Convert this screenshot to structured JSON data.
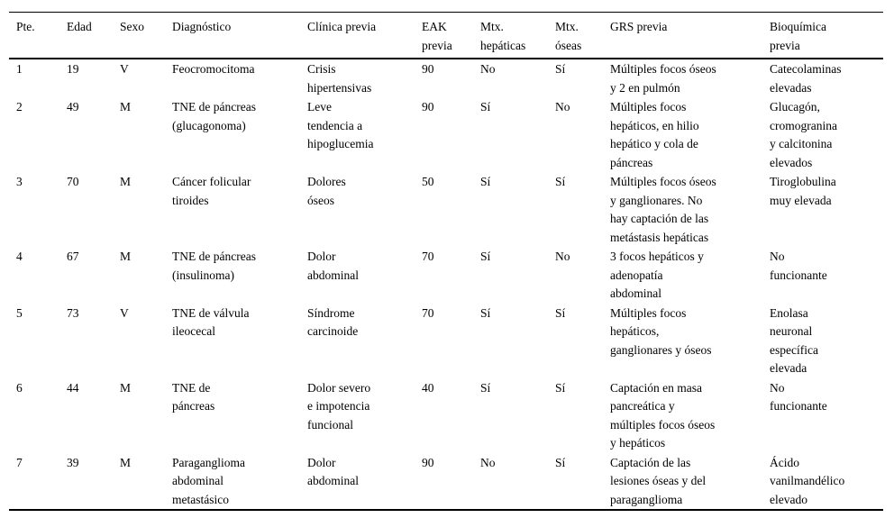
{
  "colors": {
    "text": "#000000",
    "background": "#ffffff",
    "rule": "#000000"
  },
  "table": {
    "columns": [
      {
        "key": "pte",
        "label": "Pte."
      },
      {
        "key": "edad",
        "label": "Edad"
      },
      {
        "key": "sexo",
        "label": "Sexo"
      },
      {
        "key": "diagnostico",
        "label": "Diagnóstico"
      },
      {
        "key": "clinica-previa",
        "label": "Clínica previa"
      },
      {
        "key": "eak-previa",
        "label": "EAK\nprevia"
      },
      {
        "key": "mtx-hepaticas",
        "label": "Mtx.\nhepáticas"
      },
      {
        "key": "mtx-oseas",
        "label": "Mtx.\nóseas"
      },
      {
        "key": "grs-previa",
        "label": "GRS previa"
      },
      {
        "key": "bioquimica-previa",
        "label": "Bioquímica\nprevia"
      }
    ],
    "rows": [
      [
        "1",
        "19",
        "V",
        "Feocromocitoma",
        "Crisis\nhipertensivas",
        "90",
        "No",
        "Sí",
        "Múltiples focos óseos\ny 2 en pulmón",
        "Catecolaminas\nelevadas"
      ],
      [
        "2",
        "49",
        "M",
        "TNE de páncreas\n(glucagonoma)",
        "Leve\ntendencia a\nhipoglucemia",
        "90",
        "Sí",
        "No",
        "Múltiples focos\nhepáticos, en hilio\nhepático y cola de\npáncreas",
        "Glucagón,\ncromogranina\ny calcitonina\nelevados"
      ],
      [
        "3",
        "70",
        "M",
        "Cáncer folicular\ntiroides",
        "Dolores\nóseos",
        "50",
        "Sí",
        "Sí",
        "Múltiples focos óseos\ny ganglionares. No\nhay captación de las\nmetástasis hepáticas",
        "Tiroglobulina\nmuy elevada"
      ],
      [
        "4",
        "67",
        "M",
        "TNE de páncreas\n(insulinoma)",
        "Dolor\nabdominal",
        "70",
        "Sí",
        "No",
        "3 focos hepáticos y\nadenopatía\nabdominal",
        "No\nfuncionante"
      ],
      [
        "5",
        "73",
        "V",
        "TNE de válvula\nileocecal",
        "Síndrome\ncarcinoide",
        "70",
        "Sí",
        "Sí",
        "Múltiples focos\nhepáticos,\nganglionares y óseos",
        "Enolasa\nneuronal\nespecífica\nelevada"
      ],
      [
        "6",
        "44",
        "M",
        "TNE de\npáncreas",
        "Dolor severo\ne impotencia\nfuncional",
        "40",
        "Sí",
        "Sí",
        "Captación en masa\npancreática y\nmúltiples focos óseos\ny hepáticos",
        "No\nfuncionante"
      ],
      [
        "7",
        "39",
        "M",
        "Paraganglioma\nabdominal\nmetastásico",
        "Dolor\nabdominal",
        "90",
        "No",
        "Sí",
        "Captación de las\nlesiones óseas y del\nparaganglioma",
        "Ácido\nvanilmandélico\nelevado"
      ]
    ]
  }
}
